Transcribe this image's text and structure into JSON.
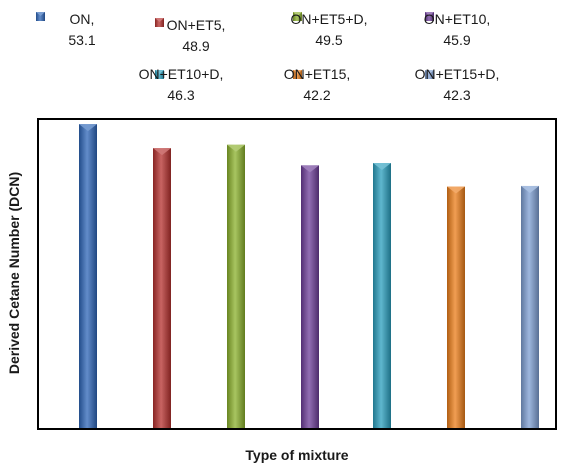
{
  "chart_data": {
    "type": "bar",
    "xlabel": "Type of mixture",
    "ylabel": "Derived Cetane Number (DCN)",
    "ylim": [
      0,
      54
    ],
    "grid": false,
    "legend_position": "top",
    "series": [
      {
        "name": "ON",
        "value": 53.1,
        "label_line1": "ON,",
        "label_line2": "53.1",
        "color": "#2e66b8"
      },
      {
        "name": "ON+ET5",
        "value": 48.9,
        "label_line1": "ON+ET5,",
        "label_line2": "48.9",
        "color": "#b5302e"
      },
      {
        "name": "ON+ET5+D",
        "value": 49.5,
        "label_line1": "ON+ET5+D,",
        "label_line2": "49.5",
        "color": "#8bb12c"
      },
      {
        "name": "ON+ET10",
        "value": 45.9,
        "label_line1": "ON+ET10,",
        "label_line2": "45.9",
        "color": "#6d3d99"
      },
      {
        "name": "ON+ET10+D",
        "value": 46.3,
        "label_line1": "ON+ET10+D,",
        "label_line2": "46.3",
        "color": "#2a9fbe"
      },
      {
        "name": "ON+ET15",
        "value": 42.2,
        "label_line1": "ON+ET15,",
        "label_line2": "42.2",
        "color": "#ec7d19"
      },
      {
        "name": "ON+ET15+D",
        "value": 42.3,
        "label_line1": "ON+ET15+D,",
        "label_line2": "42.3",
        "color": "#7e9fd3"
      }
    ]
  }
}
